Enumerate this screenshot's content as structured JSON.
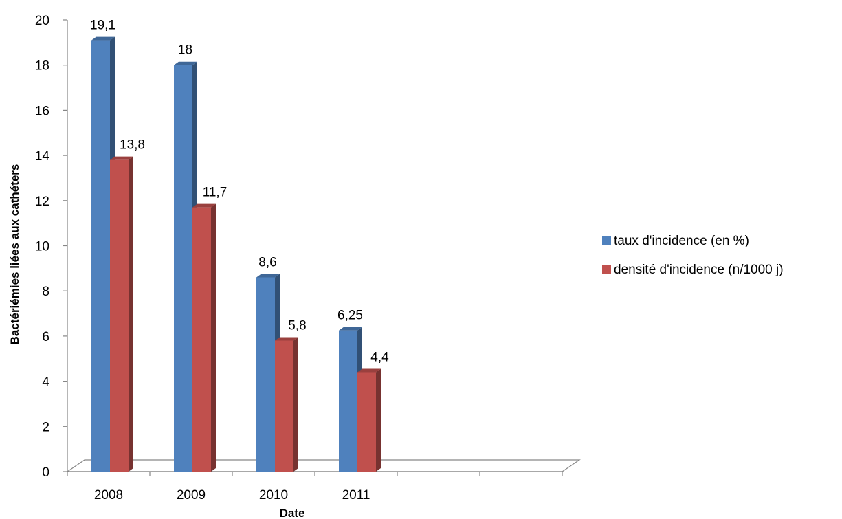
{
  "chart_data": {
    "type": "bar",
    "title": "",
    "xlabel": "Date",
    "ylabel": "Bactériémies liées aux cathéters",
    "ylim": [
      0,
      20
    ],
    "yticks": [
      "0",
      "2",
      "4",
      "6",
      "8",
      "10",
      "12",
      "14",
      "16",
      "18",
      "20"
    ],
    "categories": [
      "2008",
      "2009",
      "2010",
      "2011"
    ],
    "empty_slots": 2,
    "grid": false,
    "legend_position": "right",
    "series": [
      {
        "name": "taux d'incidence (en %)",
        "values": [
          19.1,
          18,
          8.6,
          6.25
        ],
        "labels": [
          "19,1",
          "18",
          "8,6",
          "6,25"
        ],
        "color": "#4F81BD"
      },
      {
        "name": "densité d'incidence (n/1000 j)",
        "values": [
          13.8,
          11.7,
          5.8,
          4.4
        ],
        "labels": [
          "13,8",
          "11,7",
          "5,8",
          "4,4"
        ],
        "color": "#C0504D"
      }
    ]
  }
}
